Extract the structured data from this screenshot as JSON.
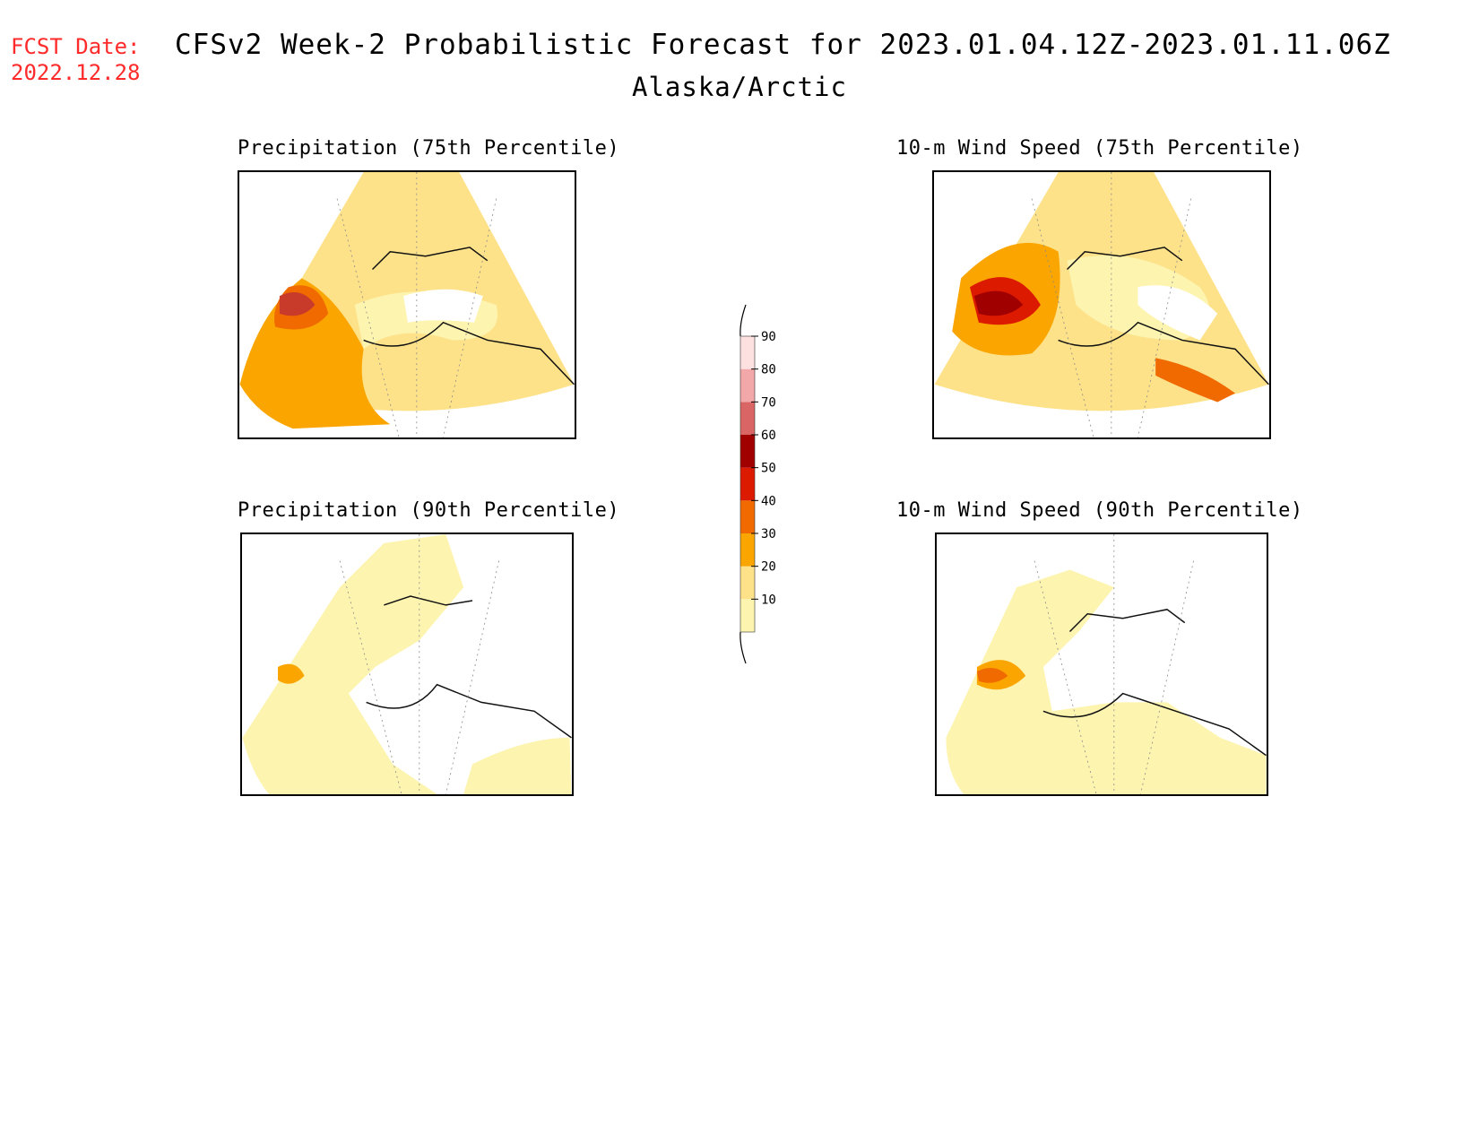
{
  "header": {
    "fcst_label": "FCST Date:",
    "fcst_date": "2022.12.28",
    "title": "CFSv2 Week-2 Probabilistic Forecast for 2023.01.04.12Z-2023.01.11.06Z",
    "subtitle": "Alaska/Arctic"
  },
  "panels": [
    {
      "title": "Precipitation (75th Percentile)",
      "dominant_color": "#fde28a",
      "hot_color": "#f06a00"
    },
    {
      "title": "10-m Wind Speed (75th Percentile)",
      "dominant_color": "#fde28a",
      "hot_color": "#a80000"
    },
    {
      "title": "Precipitation (90th Percentile)",
      "dominant_color": "#fdf4b0",
      "hot_color": "#f06a00"
    },
    {
      "title": "10-m Wind Speed (90th Percentile)",
      "dominant_color": "#fdf4b0",
      "hot_color": "#f06a00"
    }
  ],
  "colorbar": {
    "ticks": [
      "90",
      "80",
      "70",
      "60",
      "50",
      "40",
      "30",
      "20",
      "10"
    ],
    "colors": [
      "#fdf4b0",
      "#fde28a",
      "#fba500",
      "#f06a00",
      "#dc1a00",
      "#a00000",
      "#d96565",
      "#f2a8a8",
      "#fde0e0"
    ]
  }
}
